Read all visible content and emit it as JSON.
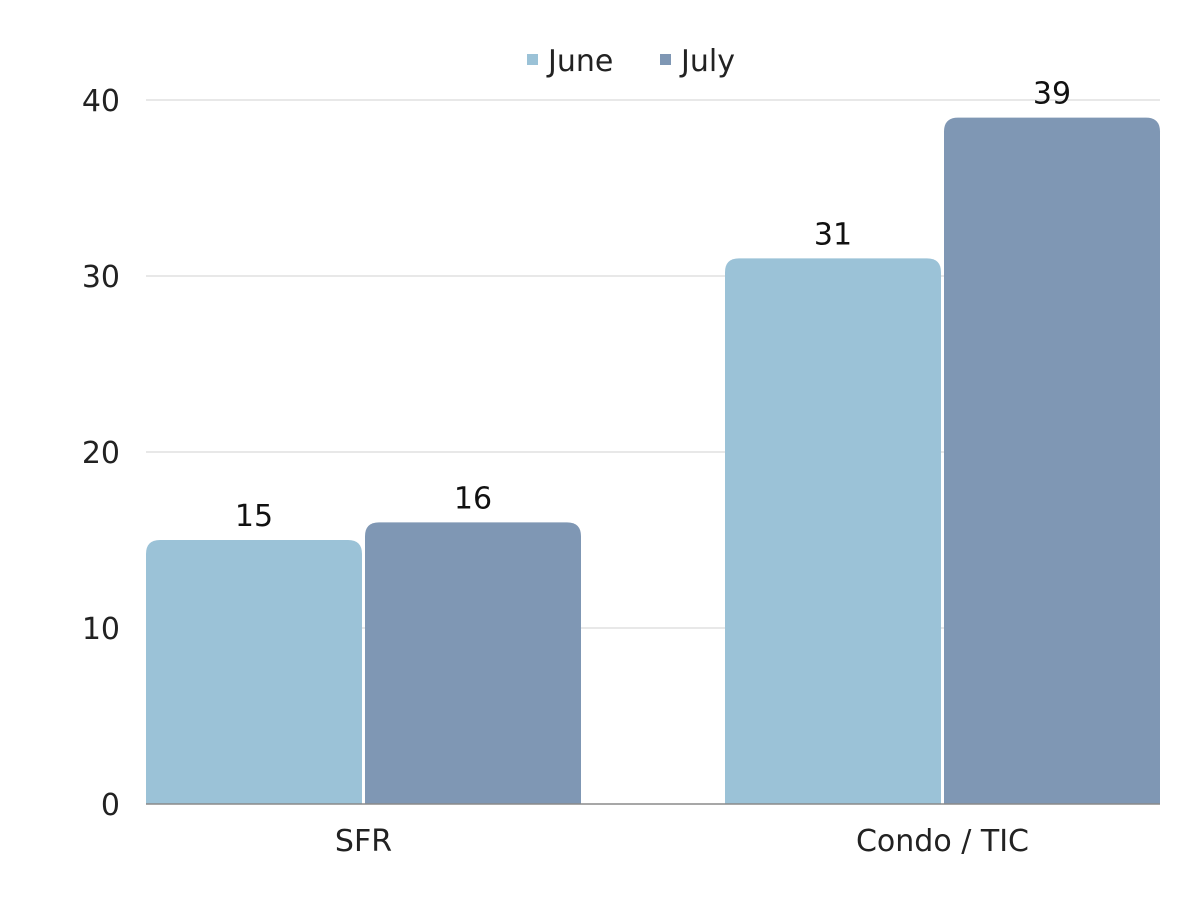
{
  "chart_data": {
    "type": "bar",
    "title": "",
    "xlabel": "",
    "ylabel": "",
    "categories": [
      "SFR",
      "Condo / TIC"
    ],
    "series": [
      {
        "name": "June",
        "values": [
          15,
          31
        ],
        "color": "#9bc2d7"
      },
      {
        "name": "July",
        "values": [
          16,
          39
        ],
        "color": "#7f97b4"
      }
    ],
    "ylim": [
      0,
      40
    ],
    "yticks": [
      0,
      10,
      20,
      30,
      40
    ],
    "grid": true,
    "legend_position": "top-center",
    "data_labels": true
  }
}
